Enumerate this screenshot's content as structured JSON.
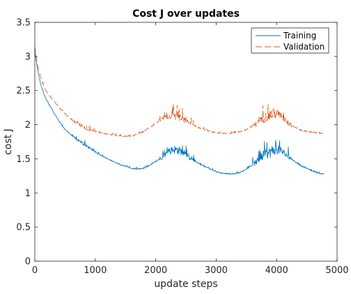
{
  "chart_data": {
    "type": "line",
    "title": "Cost J over updates",
    "xlabel": "update steps",
    "ylabel": "cost J",
    "xlim": [
      0,
      5000
    ],
    "ylim": [
      0,
      3.5
    ],
    "xticks": [
      0,
      1000,
      2000,
      3000,
      4000,
      5000
    ],
    "yticks": [
      0,
      0.5,
      1,
      1.5,
      2,
      2.5,
      3,
      3.5
    ],
    "xtick_labels": [
      "0",
      "1000",
      "2000",
      "3000",
      "4000",
      "5000"
    ],
    "ytick_labels": [
      "0",
      "0.5",
      "1",
      "1.5",
      "2",
      "2.5",
      "3",
      "3.5"
    ],
    "grid": false,
    "legend_position": "top-right",
    "series": [
      {
        "name": "Training",
        "color": "#0072BD",
        "style": "solid",
        "x": [
          0,
          20,
          50,
          100,
          150,
          200,
          300,
          400,
          500,
          600,
          700,
          800,
          900,
          1000,
          1100,
          1200,
          1300,
          1400,
          1500,
          1600,
          1700,
          1800,
          1900,
          2000,
          2100,
          2200,
          2300,
          2400,
          2500,
          2600,
          2700,
          2800,
          2900,
          3000,
          3100,
          3200,
          3300,
          3400,
          3500,
          3600,
          3700,
          3800,
          3900,
          4000,
          4100,
          4200,
          4300,
          4400,
          4500,
          4600,
          4700,
          4780
        ],
        "y": [
          3.12,
          2.95,
          2.78,
          2.58,
          2.45,
          2.35,
          2.2,
          2.05,
          1.93,
          1.85,
          1.78,
          1.72,
          1.66,
          1.6,
          1.55,
          1.5,
          1.46,
          1.42,
          1.39,
          1.36,
          1.35,
          1.36,
          1.4,
          1.46,
          1.52,
          1.6,
          1.64,
          1.62,
          1.56,
          1.5,
          1.44,
          1.39,
          1.35,
          1.31,
          1.29,
          1.28,
          1.28,
          1.3,
          1.35,
          1.41,
          1.48,
          1.55,
          1.6,
          1.65,
          1.6,
          1.53,
          1.46,
          1.4,
          1.36,
          1.32,
          1.29,
          1.27
        ]
      },
      {
        "name": "Validation",
        "color": "#D95319",
        "style": "dashed",
        "x": [
          0,
          20,
          50,
          100,
          150,
          200,
          300,
          400,
          500,
          600,
          700,
          800,
          900,
          1000,
          1100,
          1200,
          1300,
          1400,
          1500,
          1600,
          1700,
          1800,
          1900,
          2000,
          2100,
          2200,
          2300,
          2400,
          2500,
          2600,
          2700,
          2800,
          2900,
          3000,
          3100,
          3200,
          3300,
          3400,
          3500,
          3600,
          3700,
          3800,
          3900,
          4000,
          4100,
          4200,
          4300,
          4400,
          4500,
          4600,
          4700,
          4780
        ],
        "y": [
          3.15,
          3.0,
          2.85,
          2.68,
          2.56,
          2.48,
          2.36,
          2.25,
          2.16,
          2.08,
          2.02,
          1.97,
          1.93,
          1.9,
          1.88,
          1.86,
          1.85,
          1.84,
          1.83,
          1.83,
          1.86,
          1.9,
          1.96,
          2.02,
          2.08,
          2.12,
          2.13,
          2.1,
          2.05,
          2.0,
          1.96,
          1.93,
          1.9,
          1.88,
          1.87,
          1.87,
          1.88,
          1.9,
          1.93,
          1.98,
          2.04,
          2.1,
          2.15,
          2.17,
          2.1,
          2.02,
          1.96,
          1.92,
          1.9,
          1.89,
          1.88,
          1.87
        ]
      }
    ],
    "noise_regions": [
      {
        "series": 0,
        "x_start": 600,
        "x_end": 1000,
        "amplitude": 0.05
      },
      {
        "series": 0,
        "x_start": 2050,
        "x_end": 2650,
        "amplitude": 0.14
      },
      {
        "series": 0,
        "x_start": 3600,
        "x_end": 4250,
        "amplitude": 0.18
      },
      {
        "series": 1,
        "x_start": 600,
        "x_end": 1000,
        "amplitude": 0.06
      },
      {
        "series": 1,
        "x_start": 2050,
        "x_end": 2650,
        "amplitude": 0.12
      },
      {
        "series": 1,
        "x_start": 3600,
        "x_end": 4250,
        "amplitude": 0.18
      }
    ]
  }
}
